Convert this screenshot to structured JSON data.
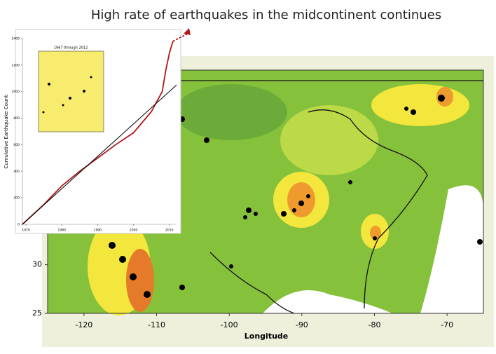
{
  "title": "High rate of earthquakes in the midcontinent continues",
  "chart_data": [
    {
      "type": "map",
      "xlabel": "Longitude",
      "xlim": [
        -125,
        -65
      ],
      "xticks": [
        -120,
        -110,
        -100,
        -90,
        -80,
        -70
      ],
      "ylim": [
        25,
        50
      ],
      "yticks": [
        25,
        30
      ]
    },
    {
      "type": "line",
      "ylabel": "Cumulative Earthquake Count",
      "inset_title": "1967 through 2012",
      "xlim": [
        1969,
        2012
      ],
      "xticks": [
        1970,
        1980,
        1990,
        2000,
        2010
      ],
      "ylim": [
        0,
        1400
      ],
      "yticks": [
        0,
        200,
        400,
        600,
        800,
        1000,
        1200,
        1400
      ],
      "x": [
        1969,
        1975,
        1980,
        1985,
        1990,
        1995,
        2000,
        2005,
        2008,
        2009,
        2010,
        2011
      ],
      "series": [
        {
          "color": "#b01818",
          "values": [
            0,
            150,
            290,
            400,
            500,
            600,
            690,
            850,
            1000,
            1160,
            1290,
            1380
          ]
        },
        {
          "color": "#000000",
          "x": [
            1969,
            2012
          ],
          "values": [
            0,
            1050
          ]
        }
      ]
    }
  ]
}
